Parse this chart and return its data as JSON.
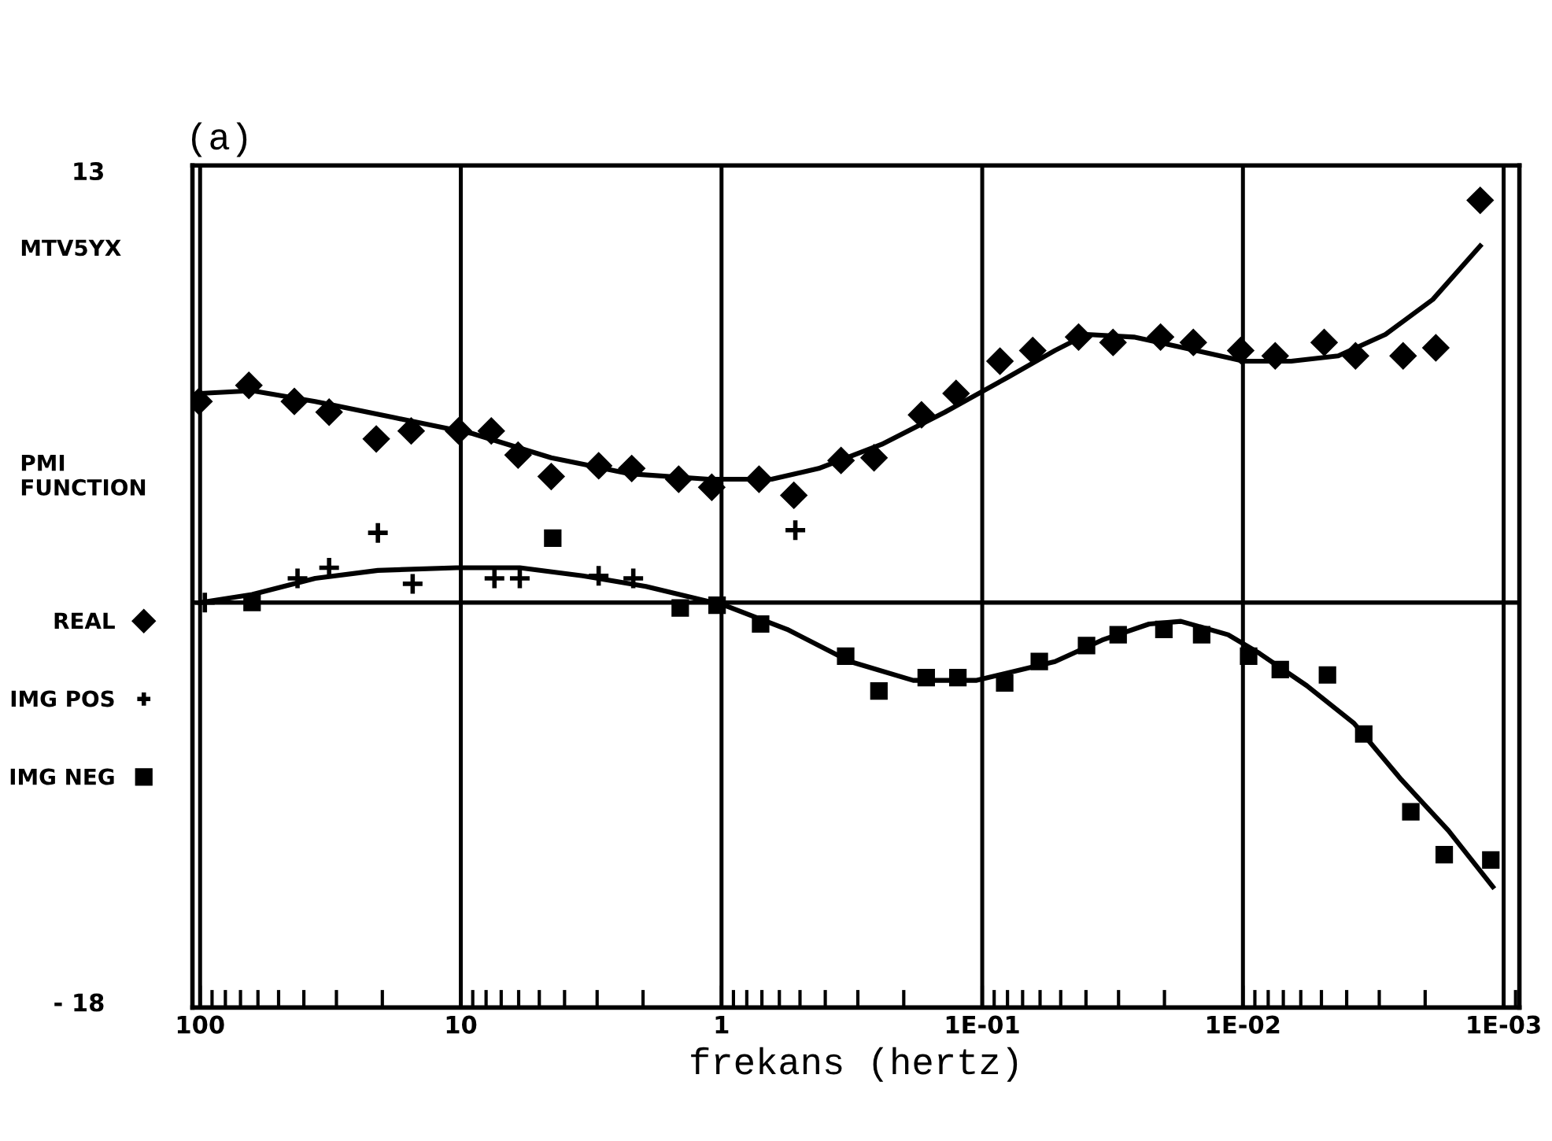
{
  "chart_data": {
    "type": "scatter",
    "title": "(a)",
    "xlabel": "frekans (hertz)",
    "ylabel": "PMI\nFUNCTION",
    "annotations": [
      "MTV5YX"
    ],
    "log": "x",
    "grid": "x",
    "legend": "left",
    "xlim": [
      107,
      0.00087
    ],
    "xticks": [
      {
        "value": 100,
        "label": "100"
      },
      {
        "value": 10,
        "label": "10"
      },
      {
        "value": 1,
        "label": "1"
      },
      {
        "value": 0.1,
        "label": "1E-01"
      },
      {
        "value": 0.01,
        "label": "1E-02"
      },
      {
        "value": 0.001,
        "label": "1E-03"
      }
    ],
    "ylim": [
      -18.2,
      13.2
    ],
    "yticks": [
      13,
      {
        "value": -18,
        "label": "- 18"
      }
    ],
    "ref_lines": [
      {
        "axis": "y",
        "value": -3.1,
        "color": "#000000"
      }
    ],
    "series": [
      {
        "name": "REAL",
        "marker": "diamond",
        "color": "#000000",
        "x": [
          101,
          65.0,
          43.5,
          32.0,
          21.1,
          15.5,
          10.2,
          7.64,
          6.03,
          4.5,
          2.96,
          2.21,
          1.46,
          1.09,
          0.718,
          0.528,
          0.348,
          0.26,
          0.171,
          0.126,
          0.0855,
          0.064,
          0.0427,
          0.0315,
          0.0207,
          0.0155,
          0.0102,
          0.00752,
          0.00488,
          0.0037,
          0.00243,
          0.00182,
          0.00123
        ],
        "values": [
          4.4,
          5.0,
          4.4,
          4.0,
          3.0,
          3.3,
          3.3,
          3.3,
          2.4,
          1.6,
          2.0,
          1.9,
          1.5,
          1.2,
          1.5,
          0.9,
          2.2,
          2.3,
          3.9,
          4.7,
          5.9,
          6.3,
          6.8,
          6.6,
          6.8,
          6.6,
          6.3,
          6.1,
          6.6,
          6.1,
          6.1,
          6.4,
          11.9
        ]
      },
      {
        "name": "IMG POS",
        "marker": "cross",
        "color": "#000000",
        "x": [
          95.9,
          42.3,
          32.0,
          20.8,
          15.3,
          7.43,
          5.94,
          2.96,
          2.18,
          0.521
        ],
        "values": [
          -3.1,
          -2.2,
          -1.8,
          -0.5,
          -2.4,
          -2.2,
          -2.2,
          -2.1,
          -2.2,
          -0.4
        ]
      },
      {
        "marker": "square",
        "color": "#000000",
        "x": [
          4.44
        ],
        "values": [
          -0.7
        ]
      },
      {
        "name": "IMG NEG",
        "marker": "square",
        "color": "#000000",
        "x": [
          63.2,
          1.44,
          1.04,
          0.708,
          0.334,
          0.249,
          0.164,
          0.124,
          0.082,
          0.0604,
          0.0398,
          0.0301,
          0.0201,
          0.0144,
          0.00951,
          0.00719,
          0.00474,
          0.00344,
          0.00227,
          0.00169,
          0.00112
        ],
        "values": [
          -3.1,
          -3.3,
          -3.2,
          -3.9,
          -5.1,
          -6.4,
          -5.9,
          -5.9,
          -6.1,
          -5.3,
          -4.7,
          -4.3,
          -4.1,
          -4.3,
          -5.1,
          -5.6,
          -5.8,
          -8.0,
          -10.9,
          -12.5,
          -12.7
        ]
      },
      {
        "type": "line",
        "marker": "none",
        "line_style": "solid",
        "color": "#000000",
        "x": [
          100,
          63.2,
          36.2,
          18.1,
          9.02,
          4.5,
          2.24,
          1.12,
          0.643,
          0.424,
          0.243,
          0.139,
          0.0798,
          0.0526,
          0.0398,
          0.0262,
          0.0151,
          0.00991,
          0.00653,
          0.00431,
          0.00284,
          0.00187,
          0.00123
        ],
        "values": [
          4.7,
          4.8,
          4.4,
          3.8,
          3.2,
          2.3,
          1.7,
          1.5,
          1.5,
          1.9,
          2.8,
          4.0,
          5.3,
          6.3,
          6.9,
          6.8,
          6.3,
          5.9,
          5.9,
          6.1,
          6.9,
          8.2,
          10.2
        ]
      },
      {
        "type": "line",
        "marker": "none",
        "line_style": "solid",
        "color": "#000000",
        "x": [
          100,
          63.2,
          36.2,
          20.8,
          10.4,
          5.94,
          3.41,
          1.95,
          0.975,
          0.56,
          0.321,
          0.184,
          0.105,
          0.0526,
          0.0347,
          0.0229,
          0.0173,
          0.0114,
          0.00863,
          0.00569,
          0.00375,
          0.00247,
          0.00163,
          0.0011
        ],
        "values": [
          -3.1,
          -2.8,
          -2.2,
          -1.9,
          -1.8,
          -1.8,
          -2.1,
          -2.5,
          -3.2,
          -4.1,
          -5.3,
          -6.0,
          -6.0,
          -5.3,
          -4.5,
          -3.9,
          -3.8,
          -4.3,
          -5.0,
          -6.2,
          -7.6,
          -9.7,
          -11.6,
          -13.7
        ]
      }
    ]
  }
}
